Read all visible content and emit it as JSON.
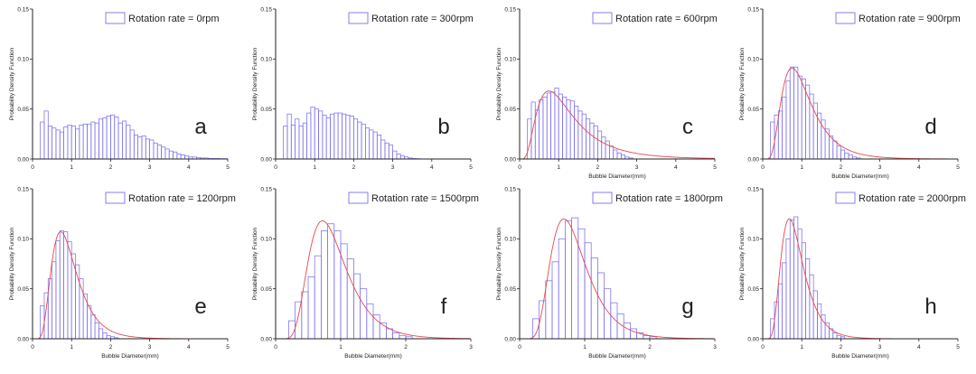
{
  "chart_data": [
    {
      "type": "bar",
      "panel_letter": "a",
      "legend": "Rotation rate = 0rpm",
      "xlabel": "",
      "ylabel": "Probability Density Function",
      "xlim": [
        0,
        5
      ],
      "ylim": [
        0,
        0.15
      ],
      "xticks": [
        "0",
        "1",
        "2",
        "3",
        "4",
        "5"
      ],
      "yticks": [
        "0.00",
        "0.05",
        "0.10",
        "0.15"
      ],
      "bin_width": 0.1,
      "bins_start": 0.2,
      "values": [
        0.037,
        0.048,
        0.033,
        0.031,
        0.029,
        0.027,
        0.032,
        0.034,
        0.033,
        0.03,
        0.034,
        0.035,
        0.035,
        0.037,
        0.036,
        0.04,
        0.041,
        0.043,
        0.044,
        0.042,
        0.036,
        0.038,
        0.034,
        0.029,
        0.024,
        0.022,
        0.023,
        0.02,
        0.019,
        0.016,
        0.014,
        0.012,
        0.01,
        0.008,
        0.007,
        0.005,
        0.004,
        0.003,
        0.002,
        0.002,
        0.0015,
        0.001,
        0.001,
        0.0005,
        0.0005,
        0.0005,
        0.0003,
        0.0003
      ],
      "fit": null
    },
    {
      "type": "bar",
      "panel_letter": "b",
      "legend": "Rotation rate = 300rpm",
      "xlabel": "",
      "ylabel": "Probability Density Function",
      "xlim": [
        0,
        5
      ],
      "ylim": [
        0,
        0.15
      ],
      "xticks": [
        "0",
        "1",
        "2",
        "3",
        "4",
        "5"
      ],
      "yticks": [
        "0.00",
        "0.05",
        "0.10",
        "0.15"
      ],
      "bin_width": 0.1,
      "bins_start": 0.2,
      "values": [
        0.033,
        0.045,
        0.034,
        0.04,
        0.033,
        0.036,
        0.046,
        0.052,
        0.05,
        0.048,
        0.044,
        0.041,
        0.045,
        0.046,
        0.046,
        0.045,
        0.044,
        0.043,
        0.04,
        0.037,
        0.035,
        0.031,
        0.029,
        0.027,
        0.024,
        0.019,
        0.016,
        0.014,
        0.008,
        0.005,
        0.003,
        0.002,
        0.001,
        0.0005,
        0.0003
      ],
      "fit": null
    },
    {
      "type": "bar",
      "panel_letter": "c",
      "legend": "Rotation rate = 600rpm",
      "xlabel": "Bubble Diameter(mm)",
      "ylabel": "Probability Density Function",
      "xlim": [
        0,
        5
      ],
      "ylim": [
        0,
        0.15
      ],
      "xticks": [
        "0",
        "1",
        "2",
        "3",
        "4",
        "5"
      ],
      "yticks": [
        "0.00",
        "0.05",
        "0.10",
        "0.15"
      ],
      "bin_width": 0.1,
      "bins_start": 0.2,
      "values": [
        0.04,
        0.057,
        0.049,
        0.059,
        0.062,
        0.066,
        0.067,
        0.071,
        0.065,
        0.062,
        0.059,
        0.058,
        0.053,
        0.048,
        0.045,
        0.04,
        0.036,
        0.033,
        0.028,
        0.022,
        0.018,
        0.013,
        0.009,
        0.006,
        0.004,
        0.002,
        0.001
      ],
      "fit": {
        "peak_x": 0.75,
        "peak_y": 0.068,
        "sigma": 0.62
      }
    },
    {
      "type": "bar",
      "panel_letter": "d",
      "legend": "Rotation rate = 900rpm",
      "xlabel": "Bubble Diameter(mm)",
      "ylabel": "Probability Density Function",
      "xlim": [
        0,
        5
      ],
      "ylim": [
        0,
        0.15
      ],
      "xticks": [
        "0",
        "1",
        "2",
        "3",
        "4",
        "5"
      ],
      "yticks": [
        "0.00",
        "0.05",
        "0.10",
        "0.15"
      ],
      "bin_width": 0.1,
      "bins_start": 0.2,
      "values": [
        0.037,
        0.044,
        0.048,
        0.062,
        0.078,
        0.092,
        0.092,
        0.083,
        0.08,
        0.074,
        0.065,
        0.056,
        0.046,
        0.039,
        0.03,
        0.023,
        0.018,
        0.013,
        0.009,
        0.006,
        0.004,
        0.002,
        0.001
      ],
      "fit": {
        "peak_x": 0.75,
        "peak_y": 0.091,
        "sigma": 0.5
      }
    },
    {
      "type": "bar",
      "panel_letter": "e",
      "legend": "Rotation rate = 1200rpm",
      "xlabel": "Bubble Diameter(mm)",
      "ylabel": "Probability Density Function",
      "xlim": [
        0,
        5
      ],
      "ylim": [
        0,
        0.15
      ],
      "xticks": [
        "0",
        "1",
        "2",
        "3",
        "4",
        "5"
      ],
      "yticks": [
        "0.00",
        "0.05",
        "0.10",
        "0.15"
      ],
      "bin_width": 0.1,
      "bins_start": 0.2,
      "values": [
        0.033,
        0.046,
        0.06,
        0.077,
        0.098,
        0.108,
        0.107,
        0.097,
        0.085,
        0.074,
        0.06,
        0.045,
        0.033,
        0.024,
        0.016,
        0.01,
        0.006,
        0.003,
        0.002,
        0.001
      ],
      "fit": {
        "peak_x": 0.72,
        "peak_y": 0.107,
        "sigma": 0.45
      }
    },
    {
      "type": "bar",
      "panel_letter": "f",
      "legend": "Rotation rate = 1500rpm",
      "xlabel": "Bubble Diameter(mm)",
      "ylabel": "Probability Density Function",
      "xlim": [
        0,
        3
      ],
      "ylim": [
        0,
        0.15
      ],
      "xticks": [
        "0",
        "1",
        "2",
        "3"
      ],
      "yticks": [
        "0.00",
        "0.05",
        "0.10",
        "0.15"
      ],
      "bin_width": 0.1,
      "bins_start": 0.2,
      "values": [
        0.018,
        0.037,
        0.047,
        0.062,
        0.083,
        0.108,
        0.115,
        0.108,
        0.095,
        0.08,
        0.065,
        0.05,
        0.035,
        0.024,
        0.016,
        0.01,
        0.006,
        0.003,
        0.002
      ],
      "fit": {
        "peak_x": 0.72,
        "peak_y": 0.118,
        "sigma": 0.4
      }
    },
    {
      "type": "bar",
      "panel_letter": "g",
      "legend": "Rotation rate = 1800rpm",
      "xlabel": "Bubble Diameter(mm)",
      "ylabel": "Probability Density Function",
      "xlim": [
        0,
        3
      ],
      "ylim": [
        0,
        0.15
      ],
      "xticks": [
        "0",
        "1",
        "2",
        "3"
      ],
      "yticks": [
        "0.00",
        "0.05",
        "0.10",
        "0.15"
      ],
      "bin_width": 0.1,
      "bins_start": 0.2,
      "values": [
        0.02,
        0.038,
        0.058,
        0.077,
        0.1,
        0.118,
        0.121,
        0.11,
        0.096,
        0.081,
        0.066,
        0.05,
        0.036,
        0.025,
        0.016,
        0.01,
        0.006,
        0.003,
        0.002
      ],
      "fit": {
        "peak_x": 0.68,
        "peak_y": 0.12,
        "sigma": 0.4
      }
    },
    {
      "type": "bar",
      "panel_letter": "h",
      "legend": "Rotation rate = 2000rpm",
      "xlabel": "Bubble Diameter(mm)",
      "ylabel": "Probability Density Function",
      "xlim": [
        0,
        5
      ],
      "ylim": [
        0,
        0.15
      ],
      "xticks": [
        "0",
        "1",
        "2",
        "3",
        "4",
        "5"
      ],
      "yticks": [
        "0.00",
        "0.05",
        "0.10",
        "0.15"
      ],
      "bin_width": 0.1,
      "bins_start": 0.2,
      "values": [
        0.02,
        0.037,
        0.055,
        0.076,
        0.1,
        0.119,
        0.122,
        0.11,
        0.096,
        0.08,
        0.064,
        0.048,
        0.035,
        0.024,
        0.016,
        0.01,
        0.006,
        0.003,
        0.002
      ],
      "fit": {
        "peak_x": 0.68,
        "peak_y": 0.12,
        "sigma": 0.42
      }
    }
  ],
  "colors": {
    "bar_edge": "#7a6ff0",
    "fit_line": "#e8474c",
    "axis": "#222222",
    "text": "#222222"
  }
}
